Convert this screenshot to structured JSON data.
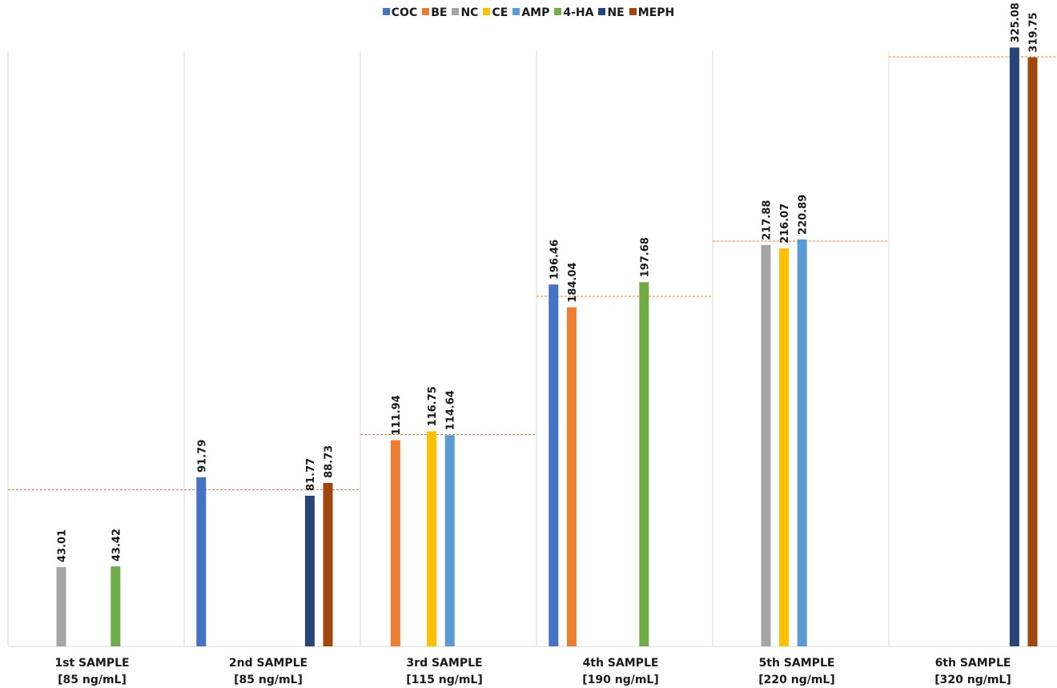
{
  "chart_data": {
    "type": "bar",
    "ylim": [
      0,
      350
    ],
    "grid": false,
    "legend_position": "top",
    "categories": [
      {
        "name": "1st SAMPLE",
        "concentration": "[85 ng/mL]",
        "reference": 85
      },
      {
        "name": "2nd SAMPLE",
        "concentration": "[85 ng/mL]",
        "reference": 85
      },
      {
        "name": "3rd SAMPLE",
        "concentration": "[115 ng/mL]",
        "reference": 115
      },
      {
        "name": "4th SAMPLE",
        "concentration": "[190 ng/mL]",
        "reference": 190
      },
      {
        "name": "5th SAMPLE",
        "concentration": "[220 ng/mL]",
        "reference": 220
      },
      {
        "name": "6th SAMPLE",
        "concentration": "[320 ng/mL]",
        "reference": 320
      }
    ],
    "series": [
      {
        "name": "COC",
        "color": "#4472C4",
        "values": [
          null,
          91.79,
          null,
          196.46,
          null,
          null
        ]
      },
      {
        "name": "BE",
        "color": "#ED7D31",
        "values": [
          null,
          null,
          111.94,
          184.04,
          null,
          null
        ]
      },
      {
        "name": "NC",
        "color": "#A5A5A5",
        "values": [
          43.01,
          null,
          null,
          null,
          217.88,
          null
        ]
      },
      {
        "name": "CE",
        "color": "#FFC000",
        "values": [
          null,
          null,
          116.75,
          null,
          216.07,
          null
        ]
      },
      {
        "name": "AMP",
        "color": "#5B9BD5",
        "values": [
          null,
          null,
          114.64,
          null,
          220.89,
          null
        ]
      },
      {
        "name": "4-HA",
        "color": "#70AD47",
        "values": [
          43.42,
          null,
          null,
          197.68,
          null,
          null
        ]
      },
      {
        "name": "NE",
        "color": "#264478",
        "values": [
          null,
          81.77,
          null,
          null,
          null,
          325.08
        ]
      },
      {
        "name": "MEPH",
        "color": "#9E480E",
        "values": [
          null,
          88.73,
          null,
          null,
          null,
          319.75
        ]
      }
    ],
    "reference_line_color": "#ED7D31",
    "divider_color": "#D9D9D9"
  }
}
